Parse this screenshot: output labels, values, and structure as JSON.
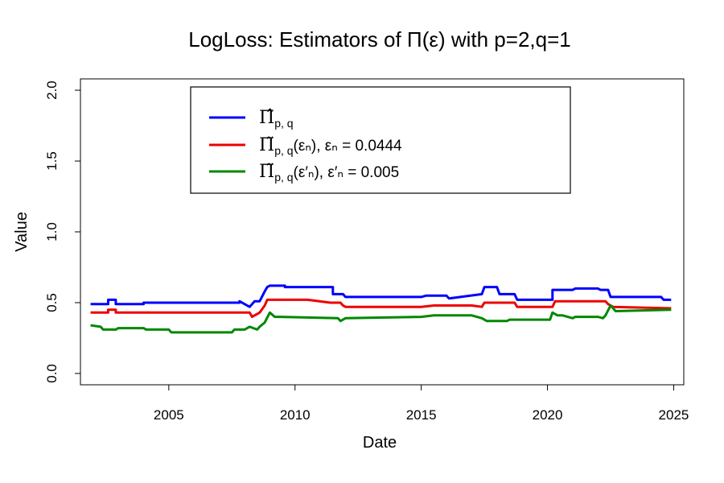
{
  "chart_data": {
    "type": "line",
    "title": "LogLoss: Estimators of Π(ε) with p=2,q=1",
    "xlabel": "Date",
    "ylabel": "Value",
    "xlim": [
      2001.5,
      2025.4
    ],
    "ylim": [
      -0.08,
      2.08
    ],
    "x_ticks": [
      2005,
      2010,
      2015,
      2020,
      2025
    ],
    "y_ticks": [
      0.0,
      0.5,
      1.0,
      1.5,
      2.0
    ],
    "x_tick_labels": [
      "2005",
      "2010",
      "2015",
      "2020",
      "2025"
    ],
    "y_tick_labels": [
      "0.0",
      "0.5",
      "1.0",
      "1.5",
      "2.0"
    ],
    "legend_position": "top-center",
    "series": [
      {
        "name": "Π̂ p,q",
        "legend_main": "Π̂",
        "legend_sub": "p, q",
        "legend_rest": "",
        "color": "#0000FF",
        "x": [
          2001.9,
          2002.6,
          2002.6,
          2002.9,
          2002.9,
          2004.0,
          2004.0,
          2007.8,
          2007.8,
          2008.2,
          2008.4,
          2008.6,
          2008.8,
          2008.9,
          2009.0,
          2009.6,
          2009.6,
          2011.5,
          2011.5,
          2011.9,
          2012.0,
          2015.0,
          2015.2,
          2016.0,
          2016.1,
          2017.4,
          2017.5,
          2018.0,
          2018.1,
          2018.7,
          2018.8,
          2020.2,
          2020.2,
          2021.0,
          2021.1,
          2022.0,
          2022.1,
          2022.4,
          2022.5,
          2024.5,
          2024.6,
          2024.9
        ],
        "y": [
          0.49,
          0.49,
          0.52,
          0.52,
          0.49,
          0.49,
          0.5,
          0.5,
          0.51,
          0.47,
          0.51,
          0.51,
          0.58,
          0.61,
          0.62,
          0.62,
          0.61,
          0.61,
          0.56,
          0.56,
          0.54,
          0.54,
          0.55,
          0.55,
          0.53,
          0.56,
          0.61,
          0.61,
          0.56,
          0.56,
          0.52,
          0.52,
          0.59,
          0.59,
          0.6,
          0.6,
          0.59,
          0.59,
          0.54,
          0.54,
          0.52,
          0.52
        ]
      },
      {
        "name": "Π̃ p,q(εn), εn = 0.0444",
        "legend_main": "Π̃",
        "legend_sub": "p, q",
        "legend_rest": "(εₙ), εₙ = 0.0444",
        "color": "#EE0000",
        "x": [
          2001.9,
          2002.6,
          2002.6,
          2002.9,
          2002.9,
          2008.2,
          2008.3,
          2008.6,
          2008.8,
          2008.9,
          2009.0,
          2010.5,
          2011.4,
          2011.8,
          2011.9,
          2012.0,
          2015.0,
          2015.5,
          2017.0,
          2017.4,
          2017.5,
          2018.4,
          2018.7,
          2018.8,
          2020.2,
          2020.3,
          2022.3,
          2022.4,
          2022.6,
          2024.9
        ],
        "y": [
          0.43,
          0.43,
          0.45,
          0.45,
          0.43,
          0.43,
          0.4,
          0.43,
          0.48,
          0.52,
          0.52,
          0.52,
          0.5,
          0.5,
          0.48,
          0.47,
          0.47,
          0.48,
          0.48,
          0.47,
          0.5,
          0.5,
          0.5,
          0.47,
          0.47,
          0.51,
          0.51,
          0.49,
          0.47,
          0.46
        ]
      },
      {
        "name": "Π̃ p,q(ε'n), ε'n = 0.005",
        "legend_main": "Π̃",
        "legend_sub": "p, q",
        "legend_rest": "(ε′ₙ), ε′ₙ = 0.005",
        "color": "#008800",
        "x": [
          2001.9,
          2002.3,
          2002.4,
          2002.9,
          2003.0,
          2004.0,
          2004.1,
          2005.0,
          2005.1,
          2007.5,
          2007.6,
          2008.0,
          2008.2,
          2008.5,
          2008.6,
          2008.8,
          2009.0,
          2009.2,
          2009.4,
          2011.7,
          2011.8,
          2012.0,
          2015.0,
          2015.5,
          2017.0,
          2017.4,
          2017.6,
          2018.4,
          2018.5,
          2020.1,
          2020.2,
          2020.4,
          2020.6,
          2021.0,
          2021.1,
          2022.0,
          2022.2,
          2022.3,
          2022.5,
          2022.7,
          2024.9
        ],
        "y": [
          0.34,
          0.33,
          0.31,
          0.31,
          0.32,
          0.32,
          0.31,
          0.31,
          0.29,
          0.29,
          0.31,
          0.31,
          0.33,
          0.31,
          0.33,
          0.36,
          0.43,
          0.4,
          0.4,
          0.39,
          0.37,
          0.39,
          0.4,
          0.41,
          0.41,
          0.39,
          0.37,
          0.37,
          0.38,
          0.38,
          0.43,
          0.41,
          0.41,
          0.39,
          0.4,
          0.4,
          0.39,
          0.41,
          0.48,
          0.44,
          0.45
        ]
      }
    ]
  }
}
